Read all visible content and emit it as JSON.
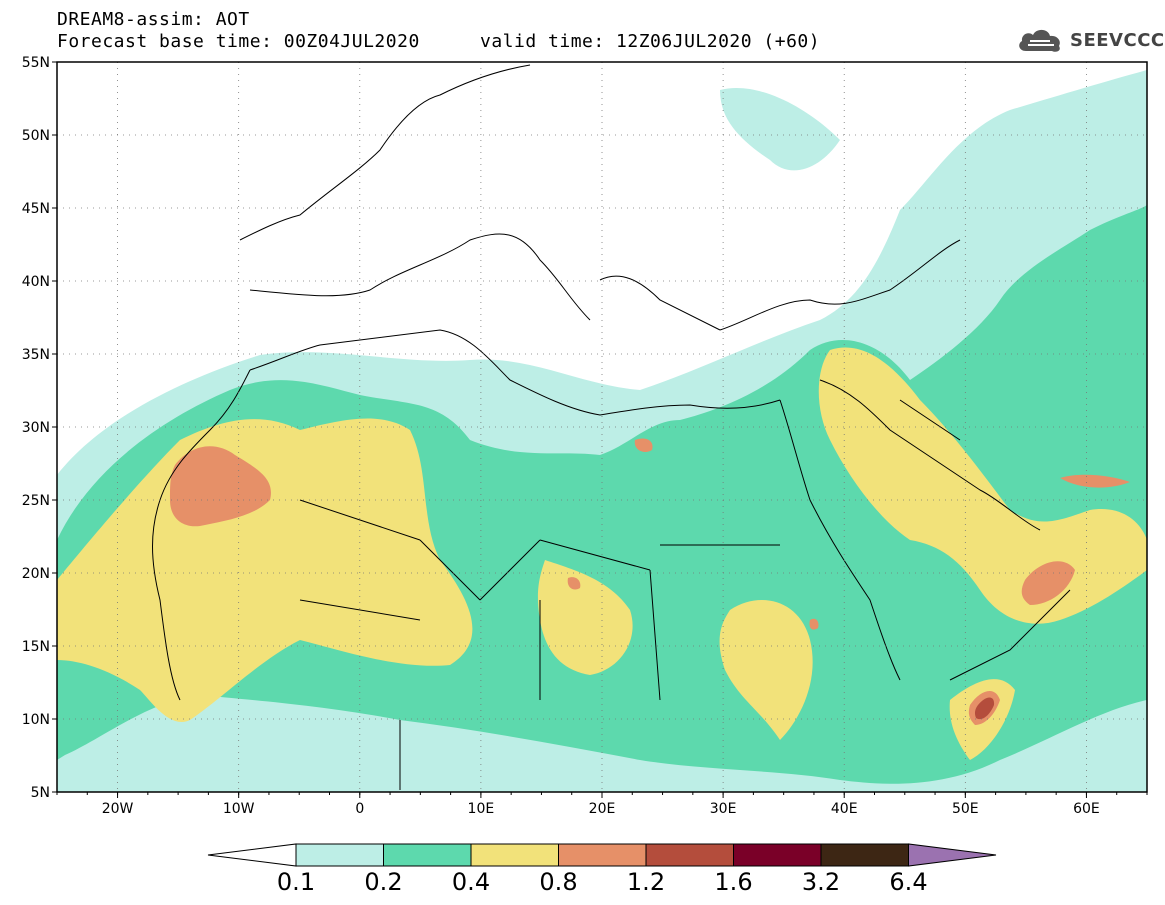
{
  "header": {
    "title": "DREAM8-assim: AOT",
    "base_time": "Forecast base time: 00Z04JUL2020",
    "valid_time": "valid time: 12Z06JUL2020 (+60)"
  },
  "logo": {
    "text": "SEEVCCC",
    "icon": "cloud-icon"
  },
  "map": {
    "lon_range": [
      -25,
      65
    ],
    "lat_range": [
      5,
      55
    ],
    "lon_ticks": [
      "20W",
      "10W",
      "0",
      "10E",
      "20E",
      "30E",
      "40E",
      "50E",
      "60E"
    ],
    "lat_ticks": [
      "55N",
      "50N",
      "45N",
      "40N",
      "35N",
      "30N",
      "25N",
      "20N",
      "15N",
      "10N",
      "5N"
    ],
    "gridlines": "dotted"
  },
  "colorbar": {
    "labels": [
      "0.1",
      "0.2",
      "0.4",
      "0.8",
      "1.2",
      "1.6",
      "3.2",
      "6.4"
    ],
    "colors": [
      "#ffffff",
      "#bdeee6",
      "#5dd9ad",
      "#f2e27a",
      "#e69068",
      "#b44d3c",
      "#7a0028",
      "#3d2614",
      "#9b72b0"
    ]
  },
  "colors": {
    "level1": "#bdeee6",
    "level2": "#5dd9ad",
    "level3": "#f2e27a",
    "level4": "#e69068",
    "level5": "#b44d3c"
  }
}
